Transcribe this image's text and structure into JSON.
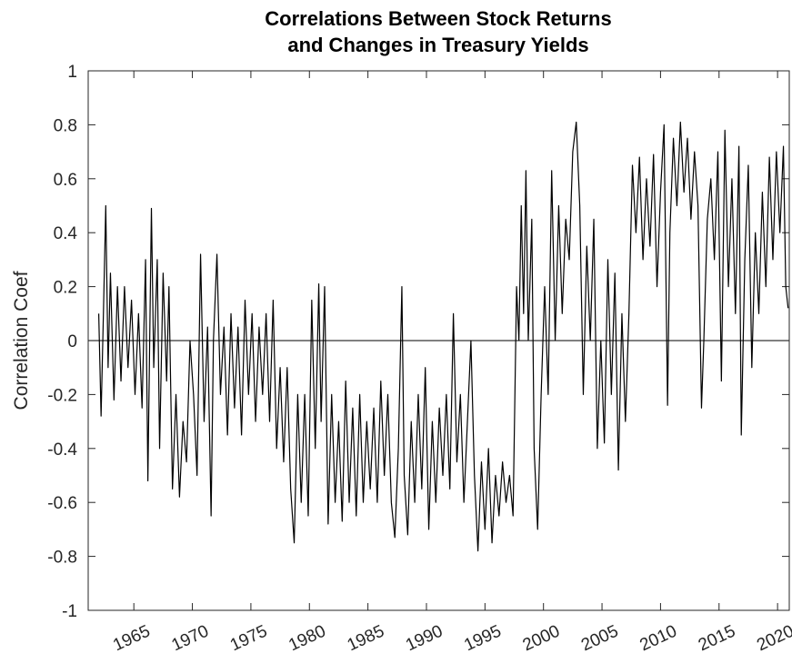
{
  "chart_data": {
    "type": "line",
    "title": [
      "Correlations Between Stock Returns",
      "and Changes in Treasury Yields"
    ],
    "y_label": "Correlation Coef",
    "color": "#000000",
    "hlines": [
      0
    ],
    "xlim": [
      1961.1,
      2021
    ],
    "ylim": [
      -1,
      1
    ],
    "xticks": [
      1965,
      1970,
      1975,
      1980,
      1985,
      1990,
      1995,
      2000,
      2005,
      2010,
      2015,
      2020
    ],
    "yticks": [
      -1,
      -0.8,
      -0.6,
      -0.4,
      -0.2,
      0,
      0.2,
      0.4,
      0.6,
      0.8,
      1
    ],
    "x": [
      1962.0,
      1962.2,
      1962.4,
      1962.6,
      1962.8,
      1963.0,
      1963.3,
      1963.6,
      1963.9,
      1964.2,
      1964.5,
      1964.8,
      1965.1,
      1965.4,
      1965.7,
      1966.0,
      1966.2,
      1966.5,
      1966.7,
      1967.0,
      1967.2,
      1967.5,
      1967.8,
      1968.0,
      1968.3,
      1968.6,
      1968.9,
      1969.2,
      1969.5,
      1969.8,
      1970.1,
      1970.4,
      1970.7,
      1971.0,
      1971.3,
      1971.6,
      1971.8,
      1972.1,
      1972.4,
      1972.7,
      1973.0,
      1973.3,
      1973.6,
      1973.9,
      1974.2,
      1974.5,
      1974.8,
      1975.1,
      1975.4,
      1975.7,
      1976.0,
      1976.3,
      1976.6,
      1976.9,
      1977.2,
      1977.5,
      1977.8,
      1978.1,
      1978.4,
      1978.7,
      1979.0,
      1979.3,
      1979.6,
      1979.9,
      1980.2,
      1980.5,
      1980.8,
      1981.0,
      1981.3,
      1981.6,
      1981.9,
      1982.2,
      1982.5,
      1982.8,
      1983.1,
      1983.4,
      1983.7,
      1984.0,
      1984.3,
      1984.6,
      1984.9,
      1985.2,
      1985.5,
      1985.8,
      1986.1,
      1986.4,
      1986.7,
      1987.0,
      1987.3,
      1987.6,
      1987.9,
      1988.1,
      1988.4,
      1988.7,
      1989.0,
      1989.3,
      1989.6,
      1989.9,
      1990.2,
      1990.5,
      1990.8,
      1991.1,
      1991.4,
      1991.7,
      1992.0,
      1992.3,
      1992.6,
      1992.9,
      1993.2,
      1993.5,
      1993.8,
      1994.1,
      1994.4,
      1994.7,
      1995.0,
      1995.3,
      1995.6,
      1995.9,
      1996.2,
      1996.5,
      1996.8,
      1997.1,
      1997.4,
      1997.7,
      1997.9,
      1998.1,
      1998.3,
      1998.5,
      1998.7,
      1999.0,
      1999.2,
      1999.5,
      1999.8,
      2000.1,
      2000.4,
      2000.7,
      2001.0,
      2001.3,
      2001.6,
      2001.9,
      2002.2,
      2002.5,
      2002.8,
      2003.1,
      2003.4,
      2003.7,
      2004.0,
      2004.3,
      2004.6,
      2004.9,
      2005.2,
      2005.5,
      2005.8,
      2006.1,
      2006.4,
      2006.7,
      2007.0,
      2007.3,
      2007.6,
      2007.9,
      2008.2,
      2008.5,
      2008.8,
      2009.1,
      2009.4,
      2009.7,
      2010.0,
      2010.3,
      2010.6,
      2010.8,
      2011.1,
      2011.4,
      2011.7,
      2012.0,
      2012.3,
      2012.6,
      2012.9,
      2013.2,
      2013.5,
      2013.7,
      2014.0,
      2014.3,
      2014.6,
      2014.9,
      2015.2,
      2015.5,
      2015.8,
      2016.1,
      2016.4,
      2016.7,
      2016.9,
      2017.2,
      2017.5,
      2017.8,
      2018.1,
      2018.4,
      2018.7,
      2019.0,
      2019.3,
      2019.6,
      2019.9,
      2020.2,
      2020.5,
      2020.7,
      2020.9
    ],
    "values": [
      0.1,
      -0.28,
      0.1,
      0.5,
      -0.1,
      0.25,
      -0.22,
      0.2,
      -0.15,
      0.2,
      -0.1,
      0.15,
      -0.2,
      0.1,
      -0.25,
      0.3,
      -0.52,
      0.49,
      -0.1,
      0.3,
      -0.4,
      0.25,
      -0.15,
      0.2,
      -0.55,
      -0.2,
      -0.58,
      -0.3,
      -0.45,
      0.0,
      -0.2,
      -0.5,
      0.32,
      -0.3,
      0.05,
      -0.65,
      0.0,
      0.32,
      -0.2,
      0.05,
      -0.35,
      0.1,
      -0.25,
      0.05,
      -0.35,
      0.15,
      -0.2,
      0.1,
      -0.3,
      0.05,
      -0.2,
      0.1,
      -0.3,
      0.15,
      -0.4,
      -0.1,
      -0.45,
      -0.1,
      -0.55,
      -0.75,
      -0.2,
      -0.6,
      -0.2,
      -0.65,
      0.15,
      -0.4,
      0.21,
      -0.3,
      0.2,
      -0.68,
      -0.2,
      -0.6,
      -0.3,
      -0.67,
      -0.15,
      -0.6,
      -0.25,
      -0.65,
      -0.2,
      -0.6,
      -0.3,
      -0.55,
      -0.25,
      -0.6,
      -0.15,
      -0.5,
      -0.2,
      -0.6,
      -0.73,
      -0.4,
      0.2,
      -0.5,
      -0.72,
      -0.3,
      -0.6,
      -0.2,
      -0.55,
      -0.1,
      -0.7,
      -0.3,
      -0.6,
      -0.25,
      -0.5,
      -0.2,
      -0.55,
      0.1,
      -0.45,
      -0.2,
      -0.6,
      -0.3,
      0.0,
      -0.5,
      -0.78,
      -0.45,
      -0.7,
      -0.4,
      -0.75,
      -0.5,
      -0.65,
      -0.45,
      -0.6,
      -0.5,
      -0.65,
      0.2,
      0.0,
      0.5,
      0.1,
      0.63,
      0.0,
      0.45,
      -0.4,
      -0.7,
      -0.2,
      0.2,
      -0.2,
      0.63,
      0.0,
      0.5,
      0.1,
      0.45,
      0.3,
      0.7,
      0.81,
      0.5,
      -0.2,
      0.35,
      0.0,
      0.45,
      -0.4,
      0.0,
      -0.38,
      0.3,
      -0.2,
      0.25,
      -0.48,
      0.1,
      -0.3,
      0.1,
      0.65,
      0.4,
      0.68,
      0.3,
      0.6,
      0.35,
      0.69,
      0.2,
      0.55,
      0.8,
      -0.24,
      0.4,
      0.75,
      0.5,
      0.81,
      0.55,
      0.75,
      0.45,
      0.7,
      0.5,
      -0.25,
      0.0,
      0.45,
      0.6,
      0.3,
      0.7,
      -0.15,
      0.78,
      0.2,
      0.6,
      0.1,
      0.72,
      -0.35,
      0.3,
      0.65,
      -0.1,
      0.4,
      0.1,
      0.55,
      0.2,
      0.68,
      0.3,
      0.7,
      0.4,
      0.72,
      0.2,
      0.12
    ]
  }
}
